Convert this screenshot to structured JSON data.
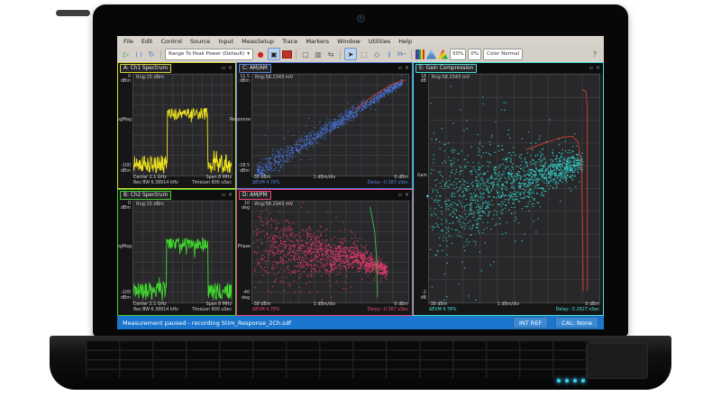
{
  "menu": {
    "items": [
      "File",
      "Edit",
      "Control",
      "Source",
      "Input",
      "MeasSetup",
      "Trace",
      "Markers",
      "Window",
      "Utilities",
      "Help"
    ]
  },
  "toolbar": {
    "icons": {
      "play": "▷",
      "pause": "❘❘",
      "restart": "↻",
      "record": "●",
      "camera": "▣",
      "single": "▢",
      "dual": "▥",
      "route": "⇆",
      "cursor": "➤",
      "marquee": "⬚",
      "diamond": "◇",
      "bars": "∥",
      "marker": "M⌐",
      "help": "?"
    },
    "range_dropdown": "Range To Peak Power (Default)",
    "caret": "▾",
    "zoom_x": "50%",
    "zoom_y": "0%",
    "color_mode": "Color Normal"
  },
  "statusbar": {
    "message": "Measurement paused - recording Stim_Response_2Ch.sdf",
    "ref": "INT REF",
    "cal": "CAL: None"
  },
  "window_icons": {
    "restore": "▫",
    "close": "×"
  },
  "panels": {
    "a": {
      "title": "A: Ch1 Spectrum",
      "accent": "#d9d93a",
      "range": "Rng:15 dBm",
      "y_top": "0",
      "y_top_unit": "dBm",
      "y_mid": "LogMag",
      "y_bot": "-100",
      "y_bot_unit": "dBm",
      "x_left_1": "Center 2.1 GHz",
      "x_left_2": "Res BW 6.38914 kHz",
      "x_right_1": "Span 8 MHz",
      "x_right_2": "TimeLen 800 uSec"
    },
    "b": {
      "title": "B: Ch2 Spectrum",
      "accent": "#47c832",
      "range": "Rng:15 dBm",
      "y_top": "0",
      "y_top_unit": "dBm",
      "y_mid": "LogMag",
      "y_bot": "-100",
      "y_bot_unit": "dBm",
      "x_left_1": "Center 2.1 GHz",
      "x_left_2": "Res BW 6.38914 kHz",
      "x_right_1": "Span 8 MHz",
      "x_right_2": "TimeLen 800 uSec"
    },
    "c": {
      "title": "C: AM/AM",
      "accent": "#5b83e0",
      "range": "Rng:58.2343 mV",
      "y_top": "11.5",
      "y_top_unit": "dBm",
      "y_mid": "Response",
      "y_bot": "-28.5",
      "y_bot_unit": "dBm",
      "x_left": "-38 dBm",
      "x_center": "1 dBm/div",
      "x_right": "0 dBm",
      "sub_left": "ΔEVM 4.78%",
      "sub_right": "Delay: -0.387 uSec"
    },
    "d": {
      "title": "D: AM/PM",
      "accent": "#ef477a",
      "range": "Rng:58.2343 mV",
      "y_top": "10",
      "y_top_unit": "deg",
      "y_mid": "Phase",
      "y_bot": "-40",
      "y_bot_unit": "deg",
      "x_left": "-38 dBm",
      "x_center": "1 dBm/div",
      "x_right": "0 dBm",
      "sub_left": "ΔEVM 4.78%",
      "sub_right": "Delay: -0.387 uSec"
    },
    "e": {
      "title": "E: Gain Compression",
      "accent": "#49e0da",
      "range": "Rng:58.2343 mV",
      "y_top": "18",
      "y_top_unit": "dB",
      "y_mid": "Gain",
      "y_bot": "-2",
      "y_bot_unit": "dB",
      "x_left": "-38 dBm",
      "x_center": "1 dBm/div",
      "x_right": "0 dBm",
      "sub_left": "ΔEVM 4.78%",
      "sub_right": "Delay: -5.2827 nSec",
      "axis_marker": "◆"
    }
  },
  "chart_data": [
    {
      "id": "a",
      "type": "spectrum",
      "title": "Ch1 Spectrum",
      "color": "#f0e41c",
      "seed": 11,
      "points": 240,
      "ylim": [
        -100,
        0
      ],
      "x_axis": {
        "center": "2.1 GHz",
        "span": "8 MHz"
      },
      "floor_db": -80,
      "floor_jitter": 18,
      "band": [
        0.345,
        0.755
      ],
      "band_db": -33,
      "band_jitter": 11
    },
    {
      "id": "b",
      "type": "spectrum",
      "title": "Ch2 Spectrum",
      "color": "#41d92e",
      "seed": 17,
      "points": 240,
      "ylim": [
        -100,
        0
      ],
      "x_axis": {
        "center": "2.1 GHz",
        "span": "8 MHz"
      },
      "floor_db": -80,
      "floor_jitter": 18,
      "band": [
        0.335,
        0.76
      ],
      "band_db": -36,
      "band_jitter": 11
    },
    {
      "id": "c",
      "type": "scatter",
      "title": "AM/AM",
      "color": "#4a7ae6",
      "seed": 23,
      "n": 900,
      "shape": "amam",
      "xlim_dbm": [
        -38,
        0
      ],
      "ylim_dbm": [
        -28.5,
        11.5
      ],
      "params": {
        "x0": 0.02,
        "x1": 0.96,
        "sp0": 0.055,
        "sp1": 0.012,
        "out_frac": 0.06,
        "out_mult": 3
      },
      "lines": [
        {
          "color": "#c23b34",
          "pts": [
            [
              66,
              35
            ],
            [
              74,
              25
            ],
            [
              82,
              16.5
            ],
            [
              89,
              10
            ],
            [
              94,
              6.8
            ],
            [
              98.5,
              5
            ]
          ]
        }
      ]
    },
    {
      "id": "d",
      "type": "scatter",
      "title": "AM/PM",
      "color": "#ef3a6e",
      "seed": 37,
      "n": 1500,
      "shape": "ampm",
      "xlim_dbm": [
        -38,
        0
      ],
      "ylim_deg": [
        -40,
        10
      ],
      "params": {
        "x_pow": 0.75,
        "x_max": 0.86,
        "c0": 0.54,
        "c1": 0.42,
        "dip": 0.1,
        "dip_start": 0.75,
        "sp0": 0.22,
        "sp1": 0.025,
        "sp_pow": 0.7,
        "out_frac": 0.18,
        "out_mult": 2.0
      },
      "lines": [
        {
          "color": "#35b14a",
          "pts": [
            [
              75.5,
              5
            ],
            [
              78.5,
              30
            ],
            [
              79.8,
              60
            ],
            [
              80.3,
              95
            ]
          ]
        }
      ]
    },
    {
      "id": "e",
      "type": "scatter",
      "title": "Gain Compression",
      "color": "#31d8cf",
      "seed": 53,
      "n": 1500,
      "shape": "gain",
      "xlim_dbm": [
        -38,
        0
      ],
      "ylim_db": [
        -2,
        18
      ],
      "params": {
        "x_pow": 0.8,
        "x_max": 0.9,
        "c0": 0.44,
        "c1": 0.62,
        "c_pow": 1.4,
        "sp0": 0.16,
        "sp1": 0.02,
        "sp_pow": 0.6,
        "out_frac": 0.18,
        "out_mult": 2.2
      },
      "lines": [
        {
          "color": "#c23b34",
          "pts": [
            [
              57,
              33
            ],
            [
              68,
              30
            ],
            [
              78,
              27.5
            ],
            [
              84,
              27
            ],
            [
              87.5,
              29.5
            ],
            [
              89.5,
              40
            ],
            [
              90.2,
              70
            ],
            [
              90.5,
              95
            ]
          ]
        },
        {
          "color": "#c23b34",
          "pts": [
            [
              89.8,
              6.5
            ],
            [
              92.2,
              7.5
            ],
            [
              92.9,
              14
            ],
            [
              93,
              95
            ]
          ]
        }
      ]
    }
  ],
  "leds": {
    "color": "#3fd2ee",
    "count": 4
  }
}
